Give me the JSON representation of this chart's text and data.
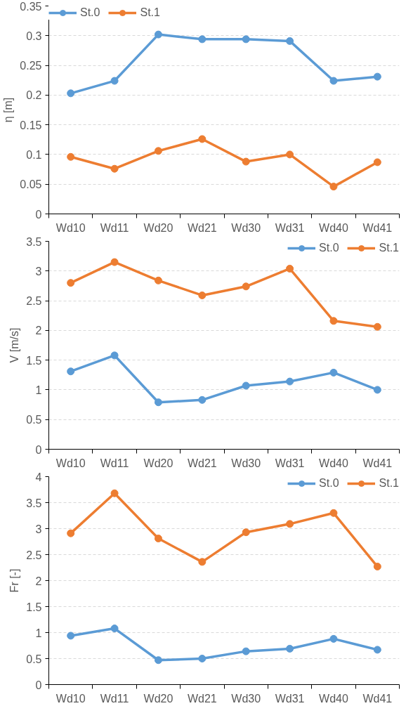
{
  "chart_data": [
    {
      "type": "line",
      "ylabel": "η [m]",
      "categories": [
        "Wd10",
        "Wd11",
        "Wd20",
        "Wd21",
        "Wd30",
        "Wd31",
        "Wd40",
        "Wd41"
      ],
      "ylim": [
        0,
        0.35
      ],
      "yticks": [
        0,
        0.05,
        0.1,
        0.15,
        0.2,
        0.25,
        0.3,
        0.35
      ],
      "grid": "y",
      "legend": "top left",
      "marker": "circle",
      "line_style": "solid",
      "series": [
        {
          "name": "St.0",
          "color": "#5b9bd5",
          "values": [
            0.203,
            0.224,
            0.302,
            0.294,
            0.294,
            0.291,
            0.224,
            0.231
          ]
        },
        {
          "name": "St.1",
          "color": "#ed7d31",
          "values": [
            0.096,
            0.076,
            0.106,
            0.126,
            0.088,
            0.1,
            0.046,
            0.087
          ]
        }
      ]
    },
    {
      "type": "line",
      "ylabel": "V [m/s]",
      "categories": [
        "Wd10",
        "Wd11",
        "Wd20",
        "Wd21",
        "Wd30",
        "Wd31",
        "Wd40",
        "Wd41"
      ],
      "ylim": [
        0,
        3.5
      ],
      "yticks": [
        0,
        0.5,
        1,
        1.5,
        2,
        2.5,
        3,
        3.5
      ],
      "grid": "y",
      "legend": "top right",
      "marker": "circle",
      "line_style": "solid",
      "series": [
        {
          "name": "St.0",
          "color": "#5b9bd5",
          "values": [
            1.31,
            1.58,
            0.79,
            0.83,
            1.07,
            1.14,
            1.29,
            1.0
          ]
        },
        {
          "name": "St.1",
          "color": "#ed7d31",
          "values": [
            2.8,
            3.15,
            2.84,
            2.59,
            2.74,
            3.04,
            2.16,
            2.06
          ]
        }
      ]
    },
    {
      "type": "line",
      "ylabel": "Fr [-]",
      "categories": [
        "Wd10",
        "Wd11",
        "Wd20",
        "Wd21",
        "Wd30",
        "Wd31",
        "Wd40",
        "Wd41"
      ],
      "ylim": [
        0,
        4
      ],
      "yticks": [
        0,
        0.5,
        1,
        1.5,
        2,
        2.5,
        3,
        3.5,
        4
      ],
      "grid": "y",
      "legend": "top right",
      "marker": "circle",
      "line_style": "solid",
      "series": [
        {
          "name": "St.0",
          "color": "#5b9bd5",
          "values": [
            0.94,
            1.08,
            0.47,
            0.5,
            0.64,
            0.69,
            0.88,
            0.67
          ]
        },
        {
          "name": "St.1",
          "color": "#ed7d31",
          "values": [
            2.91,
            3.68,
            2.81,
            2.36,
            2.93,
            3.09,
            3.3,
            2.27
          ]
        }
      ]
    }
  ]
}
